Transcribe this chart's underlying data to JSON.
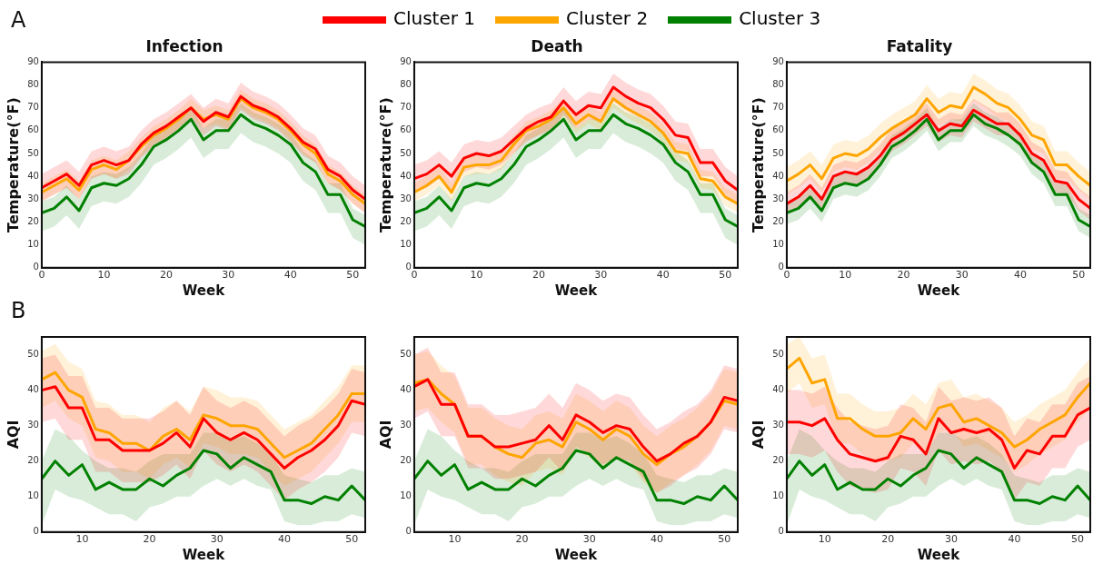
{
  "chart_data": [
    {
      "type": "line",
      "title": "Infection",
      "xlabel": "Week",
      "ylabel": "Temperature(°F)",
      "annotations": [
        "A"
      ],
      "legend": "top",
      "grid": false,
      "x": [
        0,
        2,
        4,
        6,
        8,
        10,
        12,
        14,
        16,
        18,
        20,
        22,
        24,
        26,
        28,
        30,
        32,
        34,
        36,
        38,
        40,
        42,
        44,
        46,
        48,
        50,
        52
      ],
      "xlim": [
        0,
        52
      ],
      "xticks": [
        0,
        10,
        20,
        30,
        40,
        50
      ],
      "ylim": [
        0,
        90
      ],
      "yticks": [
        0,
        10,
        20,
        30,
        40,
        50,
        60,
        70,
        80,
        90
      ],
      "series": [
        {
          "name": "Cluster 1",
          "color": "#ff0000",
          "values": [
            35,
            38,
            41,
            36,
            45,
            47,
            45,
            47,
            54,
            59,
            62,
            66,
            70,
            64,
            68,
            66,
            75,
            71,
            69,
            66,
            61,
            55,
            52,
            43,
            40,
            34,
            30
          ],
          "lower": [
            29,
            32,
            35,
            30,
            39,
            41,
            39,
            41,
            48,
            53,
            56,
            60,
            64,
            58,
            62,
            60,
            69,
            65,
            63,
            60,
            55,
            49,
            46,
            37,
            34,
            28,
            24
          ],
          "upper": [
            41,
            44,
            47,
            42,
            51,
            53,
            51,
            53,
            60,
            65,
            68,
            72,
            76,
            70,
            74,
            72,
            81,
            77,
            75,
            72,
            67,
            61,
            58,
            49,
            46,
            40,
            36
          ]
        },
        {
          "name": "Cluster 2",
          "color": "#ffa500",
          "values": [
            33,
            36,
            39,
            34,
            43,
            45,
            43,
            47,
            53,
            58,
            61,
            65,
            70,
            65,
            67,
            65,
            74,
            70,
            68,
            65,
            60,
            54,
            50,
            41,
            38,
            32,
            28
          ],
          "lower": [
            29,
            32,
            35,
            30,
            39,
            41,
            39,
            43,
            49,
            54,
            57,
            61,
            66,
            61,
            63,
            61,
            70,
            66,
            64,
            61,
            56,
            50,
            46,
            37,
            34,
            28,
            24
          ],
          "upper": [
            37,
            40,
            43,
            38,
            47,
            49,
            47,
            51,
            57,
            62,
            65,
            69,
            74,
            69,
            71,
            69,
            78,
            74,
            72,
            69,
            64,
            58,
            54,
            45,
            42,
            36,
            32
          ]
        },
        {
          "name": "Cluster 3",
          "color": "#008000",
          "values": [
            24,
            26,
            31,
            25,
            35,
            37,
            36,
            39,
            45,
            53,
            56,
            60,
            65,
            56,
            60,
            60,
            67,
            63,
            61,
            58,
            54,
            46,
            42,
            32,
            32,
            21,
            18
          ],
          "lower": [
            16,
            18,
            23,
            17,
            27,
            29,
            28,
            31,
            37,
            45,
            48,
            52,
            57,
            48,
            52,
            52,
            59,
            55,
            53,
            50,
            46,
            38,
            34,
            24,
            24,
            13,
            10
          ],
          "upper": [
            29,
            31,
            36,
            30,
            40,
            42,
            41,
            44,
            50,
            58,
            61,
            65,
            70,
            61,
            65,
            65,
            72,
            68,
            66,
            63,
            59,
            51,
            47,
            37,
            37,
            26,
            23
          ]
        }
      ]
    },
    {
      "type": "line",
      "title": "Death",
      "xlabel": "Week",
      "ylabel": "Temperature(°F)",
      "grid": false,
      "x": [
        0,
        2,
        4,
        6,
        8,
        10,
        12,
        14,
        16,
        18,
        20,
        22,
        24,
        26,
        28,
        30,
        32,
        34,
        36,
        38,
        40,
        42,
        44,
        46,
        48,
        50,
        52
      ],
      "xlim": [
        0,
        52
      ],
      "xticks": [
        0,
        10,
        20,
        30,
        40,
        50
      ],
      "ylim": [
        0,
        90
      ],
      "yticks": [
        0,
        10,
        20,
        30,
        40,
        50,
        60,
        70,
        80,
        90
      ],
      "series": [
        {
          "color": "#ff0000",
          "values": [
            39,
            41,
            45,
            40,
            48,
            50,
            49,
            51,
            56,
            61,
            64,
            66,
            73,
            67,
            71,
            70,
            79,
            75,
            72,
            70,
            65,
            58,
            57,
            46,
            46,
            38,
            34
          ],
          "lower": [
            33,
            35,
            39,
            34,
            42,
            44,
            43,
            45,
            50,
            55,
            58,
            60,
            67,
            61,
            65,
            64,
            73,
            69,
            66,
            64,
            59,
            52,
            51,
            40,
            40,
            32,
            28
          ],
          "upper": [
            45,
            47,
            51,
            46,
            54,
            56,
            55,
            57,
            62,
            67,
            70,
            72,
            79,
            73,
            77,
            76,
            85,
            81,
            78,
            76,
            71,
            64,
            63,
            52,
            52,
            44,
            40
          ]
        },
        {
          "color": "#ffa500",
          "values": [
            33,
            36,
            40,
            33,
            44,
            45,
            45,
            47,
            54,
            60,
            62,
            65,
            70,
            63,
            67,
            64,
            74,
            70,
            67,
            64,
            59,
            51,
            50,
            39,
            38,
            31,
            28
          ],
          "lower": [
            29,
            32,
            36,
            29,
            40,
            41,
            41,
            43,
            50,
            56,
            58,
            61,
            66,
            59,
            63,
            60,
            70,
            66,
            63,
            60,
            55,
            47,
            46,
            35,
            34,
            27,
            24
          ],
          "upper": [
            37,
            40,
            44,
            37,
            48,
            49,
            49,
            51,
            58,
            64,
            66,
            69,
            74,
            67,
            71,
            68,
            78,
            74,
            71,
            68,
            63,
            55,
            54,
            43,
            42,
            35,
            32
          ]
        },
        {
          "color": "#008000",
          "values": [
            24,
            26,
            31,
            25,
            35,
            37,
            36,
            39,
            45,
            53,
            56,
            60,
            65,
            56,
            60,
            60,
            67,
            63,
            61,
            58,
            54,
            46,
            42,
            32,
            32,
            21,
            18
          ],
          "lower": [
            16,
            18,
            23,
            17,
            27,
            29,
            28,
            31,
            37,
            45,
            48,
            52,
            57,
            48,
            52,
            52,
            59,
            55,
            53,
            50,
            46,
            38,
            34,
            24,
            24,
            13,
            10
          ],
          "upper": [
            29,
            31,
            36,
            30,
            40,
            42,
            41,
            44,
            50,
            58,
            61,
            65,
            70,
            61,
            65,
            65,
            72,
            68,
            66,
            63,
            59,
            51,
            47,
            37,
            37,
            26,
            23
          ]
        }
      ]
    },
    {
      "type": "line",
      "title": "Fatality",
      "xlabel": "Week",
      "ylabel": "Temperature(°F)",
      "grid": false,
      "x": [
        0,
        2,
        4,
        6,
        8,
        10,
        12,
        14,
        16,
        18,
        20,
        22,
        24,
        26,
        28,
        30,
        32,
        34,
        36,
        38,
        40,
        42,
        44,
        46,
        48,
        50,
        52
      ],
      "xlim": [
        0,
        52
      ],
      "xticks": [
        0,
        10,
        20,
        30,
        40,
        50
      ],
      "ylim": [
        0,
        90
      ],
      "yticks": [
        0,
        10,
        20,
        30,
        40,
        50,
        60,
        70,
        80,
        90
      ],
      "series": [
        {
          "color": "#ff0000",
          "values": [
            28,
            31,
            36,
            30,
            40,
            42,
            41,
            44,
            49,
            56,
            59,
            63,
            67,
            60,
            63,
            62,
            69,
            66,
            63,
            63,
            58,
            50,
            47,
            38,
            37,
            30,
            26
          ],
          "lower": [
            23,
            26,
            31,
            25,
            35,
            37,
            36,
            39,
            44,
            51,
            54,
            58,
            62,
            55,
            58,
            57,
            64,
            61,
            58,
            58,
            53,
            45,
            42,
            33,
            32,
            25,
            21
          ],
          "upper": [
            33,
            36,
            41,
            35,
            45,
            47,
            46,
            49,
            54,
            61,
            64,
            68,
            72,
            65,
            68,
            67,
            74,
            71,
            68,
            68,
            63,
            55,
            52,
            43,
            42,
            35,
            31
          ]
        },
        {
          "color": "#ffa500",
          "values": [
            38,
            41,
            45,
            39,
            48,
            50,
            49,
            52,
            57,
            61,
            64,
            67,
            74,
            68,
            71,
            70,
            79,
            76,
            72,
            70,
            65,
            58,
            56,
            45,
            45,
            40,
            36
          ],
          "lower": [
            32,
            35,
            39,
            33,
            42,
            44,
            43,
            46,
            51,
            55,
            58,
            61,
            68,
            62,
            65,
            64,
            73,
            70,
            66,
            64,
            59,
            52,
            50,
            39,
            39,
            34,
            30
          ],
          "upper": [
            44,
            47,
            51,
            45,
            54,
            56,
            55,
            58,
            63,
            67,
            70,
            73,
            80,
            74,
            77,
            76,
            85,
            82,
            78,
            76,
            71,
            64,
            62,
            51,
            51,
            46,
            42
          ]
        },
        {
          "color": "#008000",
          "values": [
            24,
            26,
            31,
            25,
            35,
            37,
            36,
            39,
            45,
            53,
            56,
            60,
            65,
            56,
            60,
            60,
            67,
            63,
            61,
            58,
            54,
            46,
            42,
            32,
            32,
            21,
            18
          ],
          "lower": [
            19,
            21,
            26,
            20,
            30,
            32,
            31,
            34,
            40,
            48,
            51,
            55,
            60,
            51,
            55,
            55,
            62,
            58,
            56,
            53,
            49,
            41,
            37,
            27,
            27,
            16,
            13
          ],
          "upper": [
            29,
            31,
            36,
            30,
            40,
            42,
            41,
            44,
            50,
            58,
            61,
            65,
            70,
            61,
            65,
            65,
            72,
            68,
            66,
            63,
            59,
            51,
            47,
            37,
            37,
            26,
            23
          ]
        }
      ]
    },
    {
      "type": "line",
      "xlabel": "Week",
      "ylabel": "AQI",
      "annotations": [
        "B"
      ],
      "grid": false,
      "x": [
        4,
        6,
        8,
        10,
        12,
        14,
        16,
        18,
        20,
        22,
        24,
        26,
        28,
        30,
        32,
        34,
        36,
        38,
        40,
        42,
        44,
        46,
        48,
        50,
        52
      ],
      "xlim": [
        4,
        52
      ],
      "xticks": [
        10,
        20,
        30,
        40,
        50
      ],
      "ylim": [
        0,
        55
      ],
      "yticks": [
        0,
        10,
        20,
        30,
        40,
        50
      ],
      "series": [
        {
          "color": "#ff0000",
          "values": [
            40,
            41,
            35,
            35,
            26,
            26,
            23,
            23,
            23,
            25,
            28,
            24,
            32,
            28,
            26,
            28,
            26,
            22,
            18,
            21,
            23,
            26,
            30,
            37,
            36
          ],
          "lower": [
            31,
            32,
            26,
            26,
            17,
            17,
            14,
            14,
            14,
            16,
            19,
            15,
            23,
            19,
            17,
            19,
            17,
            13,
            9,
            12,
            14,
            17,
            21,
            28,
            27
          ],
          "upper": [
            49,
            50,
            44,
            44,
            35,
            35,
            32,
            32,
            32,
            34,
            37,
            33,
            41,
            37,
            35,
            37,
            35,
            31,
            27,
            30,
            32,
            35,
            39,
            46,
            45
          ]
        },
        {
          "color": "#ffa500",
          "values": [
            43,
            45,
            40,
            38,
            29,
            28,
            25,
            25,
            23,
            27,
            29,
            26,
            33,
            32,
            30,
            30,
            29,
            25,
            21,
            23,
            25,
            29,
            33,
            39,
            39
          ],
          "lower": [
            35,
            37,
            32,
            30,
            21,
            20,
            17,
            17,
            15,
            19,
            21,
            18,
            25,
            24,
            22,
            22,
            21,
            17,
            13,
            15,
            17,
            21,
            25,
            31,
            31
          ],
          "upper": [
            51,
            53,
            48,
            46,
            37,
            36,
            33,
            33,
            31,
            35,
            37,
            34,
            41,
            40,
            38,
            38,
            37,
            33,
            29,
            31,
            33,
            37,
            41,
            47,
            47
          ]
        },
        {
          "color": "#008000",
          "values": [
            15,
            20,
            16,
            19,
            12,
            14,
            12,
            12,
            15,
            13,
            16,
            18,
            23,
            22,
            18,
            21,
            19,
            17,
            9,
            9,
            8,
            10,
            9,
            13,
            9
          ],
          "lower": [
            2,
            12,
            10,
            9,
            7,
            5,
            5,
            3,
            7,
            8,
            10,
            10,
            13,
            15,
            13,
            15,
            13,
            12,
            3,
            2,
            2,
            3,
            3,
            5,
            4
          ],
          "upper": [
            20,
            29,
            27,
            23,
            20,
            18,
            18,
            17,
            20,
            22,
            22,
            22,
            28,
            28,
            26,
            27,
            25,
            22,
            16,
            15,
            14,
            16,
            16,
            18,
            17
          ]
        }
      ]
    },
    {
      "type": "line",
      "xlabel": "Week",
      "ylabel": "AQI",
      "grid": false,
      "x": [
        4,
        6,
        8,
        10,
        12,
        14,
        16,
        18,
        20,
        22,
        24,
        26,
        28,
        30,
        32,
        34,
        36,
        38,
        40,
        42,
        44,
        46,
        48,
        50,
        52
      ],
      "xlim": [
        4,
        52
      ],
      "xticks": [
        10,
        20,
        30,
        40,
        50
      ],
      "ylim": [
        0,
        55
      ],
      "yticks": [
        0,
        10,
        20,
        30,
        40,
        50
      ],
      "series": [
        {
          "color": "#ff0000",
          "values": [
            41,
            43,
            36,
            36,
            27,
            27,
            24,
            24,
            25,
            26,
            30,
            26,
            33,
            31,
            28,
            30,
            29,
            24,
            20,
            22,
            25,
            27,
            31,
            38,
            37
          ],
          "lower": [
            32,
            34,
            27,
            27,
            18,
            18,
            15,
            15,
            16,
            17,
            21,
            17,
            24,
            22,
            19,
            21,
            20,
            15,
            11,
            13,
            16,
            18,
            22,
            29,
            28
          ],
          "upper": [
            50,
            52,
            45,
            45,
            36,
            36,
            33,
            33,
            34,
            35,
            39,
            35,
            42,
            40,
            37,
            39,
            38,
            33,
            29,
            31,
            34,
            36,
            40,
            47,
            46
          ]
        },
        {
          "color": "#ffa500",
          "values": [
            42,
            43,
            39,
            36,
            27,
            27,
            24,
            22,
            21,
            25,
            26,
            24,
            31,
            29,
            26,
            29,
            27,
            22,
            19,
            22,
            24,
            27,
            31,
            37,
            36
          ],
          "lower": [
            34,
            35,
            31,
            28,
            19,
            19,
            16,
            14,
            13,
            17,
            18,
            16,
            23,
            21,
            18,
            21,
            19,
            14,
            11,
            14,
            16,
            19,
            23,
            30,
            29
          ],
          "upper": [
            50,
            51,
            47,
            44,
            35,
            35,
            32,
            30,
            29,
            33,
            34,
            32,
            39,
            37,
            34,
            37,
            35,
            30,
            27,
            30,
            32,
            35,
            39,
            46,
            45
          ]
        },
        {
          "color": "#008000",
          "values": [
            15,
            20,
            16,
            19,
            12,
            14,
            12,
            12,
            15,
            13,
            16,
            18,
            23,
            22,
            18,
            21,
            19,
            17,
            9,
            9,
            8,
            10,
            9,
            13,
            9
          ],
          "lower": [
            2,
            12,
            10,
            9,
            7,
            5,
            5,
            3,
            7,
            8,
            10,
            10,
            13,
            15,
            13,
            15,
            13,
            12,
            3,
            2,
            2,
            3,
            3,
            5,
            4
          ],
          "upper": [
            20,
            29,
            27,
            23,
            20,
            18,
            18,
            17,
            20,
            22,
            22,
            22,
            28,
            28,
            26,
            27,
            25,
            22,
            16,
            15,
            14,
            16,
            16,
            18,
            17
          ]
        }
      ]
    },
    {
      "type": "line",
      "xlabel": "Week",
      "ylabel": "AQI",
      "grid": false,
      "x": [
        4,
        6,
        8,
        10,
        12,
        14,
        16,
        18,
        20,
        22,
        24,
        26,
        28,
        30,
        32,
        34,
        36,
        38,
        40,
        42,
        44,
        46,
        48,
        50,
        52
      ],
      "xlim": [
        4,
        52
      ],
      "xticks": [
        10,
        20,
        30,
        40,
        50
      ],
      "ylim": [
        0,
        55
      ],
      "yticks": [
        0,
        10,
        20,
        30,
        40,
        50
      ],
      "series": [
        {
          "color": "#ff0000",
          "values": [
            31,
            31,
            30,
            32,
            26,
            22,
            21,
            20,
            21,
            27,
            26,
            22,
            32,
            28,
            29,
            28,
            29,
            26,
            18,
            23,
            22,
            27,
            27,
            33,
            35
          ],
          "lower": [
            22,
            22,
            21,
            23,
            17,
            13,
            12,
            11,
            12,
            18,
            17,
            13,
            23,
            19,
            20,
            19,
            20,
            17,
            9,
            14,
            13,
            18,
            18,
            24,
            26
          ],
          "upper": [
            40,
            40,
            39,
            41,
            35,
            31,
            30,
            29,
            30,
            36,
            35,
            31,
            41,
            37,
            38,
            37,
            38,
            35,
            27,
            32,
            31,
            36,
            36,
            42,
            44
          ]
        },
        {
          "color": "#ffa500",
          "values": [
            46,
            49,
            42,
            43,
            32,
            32,
            29,
            27,
            27,
            28,
            32,
            29,
            35,
            36,
            31,
            32,
            30,
            28,
            24,
            26,
            29,
            31,
            33,
            38,
            42
          ],
          "lower": [
            39,
            42,
            35,
            36,
            25,
            25,
            22,
            20,
            20,
            21,
            25,
            22,
            28,
            29,
            24,
            25,
            23,
            21,
            17,
            19,
            22,
            24,
            26,
            31,
            35
          ],
          "upper": [
            53,
            55,
            49,
            50,
            39,
            39,
            36,
            34,
            34,
            35,
            39,
            36,
            42,
            43,
            38,
            39,
            37,
            35,
            31,
            33,
            36,
            38,
            40,
            45,
            49
          ]
        },
        {
          "color": "#008000",
          "values": [
            15,
            20,
            16,
            19,
            12,
            14,
            12,
            12,
            15,
            13,
            16,
            18,
            23,
            22,
            18,
            21,
            19,
            17,
            9,
            9,
            8,
            10,
            9,
            13,
            9
          ],
          "lower": [
            2,
            12,
            10,
            9,
            7,
            5,
            5,
            3,
            7,
            8,
            10,
            10,
            13,
            15,
            13,
            15,
            13,
            12,
            3,
            2,
            2,
            3,
            3,
            5,
            4
          ],
          "upper": [
            20,
            29,
            27,
            23,
            20,
            18,
            18,
            17,
            20,
            22,
            22,
            22,
            28,
            28,
            26,
            27,
            25,
            22,
            16,
            15,
            14,
            16,
            16,
            18,
            17
          ]
        }
      ]
    }
  ]
}
